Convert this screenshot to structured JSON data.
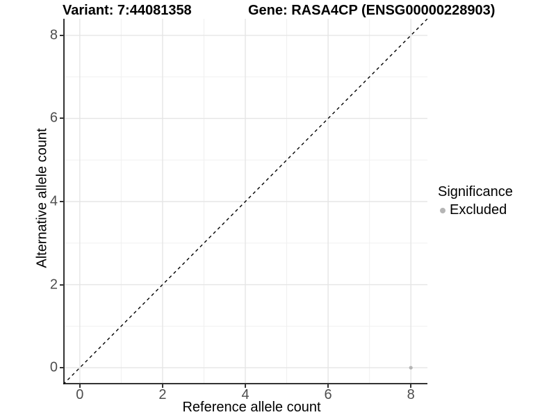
{
  "chart_data": {
    "type": "scatter",
    "title_left": "Variant: 7:44081358",
    "title_right": "Gene: RASA4CP (ENSG00000228903)",
    "xlabel": "Reference allele count",
    "ylabel": "Alternative allele count",
    "xlim": [
      -0.4,
      8.4
    ],
    "ylim": [
      -0.4,
      8.4
    ],
    "x_major_ticks": [
      0,
      2,
      4,
      6,
      8
    ],
    "y_major_ticks": [
      0,
      2,
      4,
      6,
      8
    ],
    "x_minor_ticks": [
      1,
      3,
      5,
      7
    ],
    "y_minor_ticks": [
      1,
      3,
      5,
      7
    ],
    "grid": "major+minor",
    "identity_line": {
      "slope": 1,
      "intercept": 0,
      "style": "dashed",
      "color": "#000000"
    },
    "series": [
      {
        "name": "Excluded",
        "color": "#b5b5b5",
        "points": [
          {
            "x": 8,
            "y": 0
          }
        ]
      }
    ],
    "legend": {
      "title": "Significance",
      "position": "right",
      "items": [
        {
          "label": "Excluded",
          "color": "#b5b5b5"
        }
      ]
    },
    "theme": {
      "grid_major_color": "#e5e5e5",
      "grid_minor_color": "#f0f0f0",
      "axis_line_color": "#333333",
      "tick_text_color": "#4d4d4d",
      "title_color": "#000000",
      "background": "#ffffff"
    }
  }
}
